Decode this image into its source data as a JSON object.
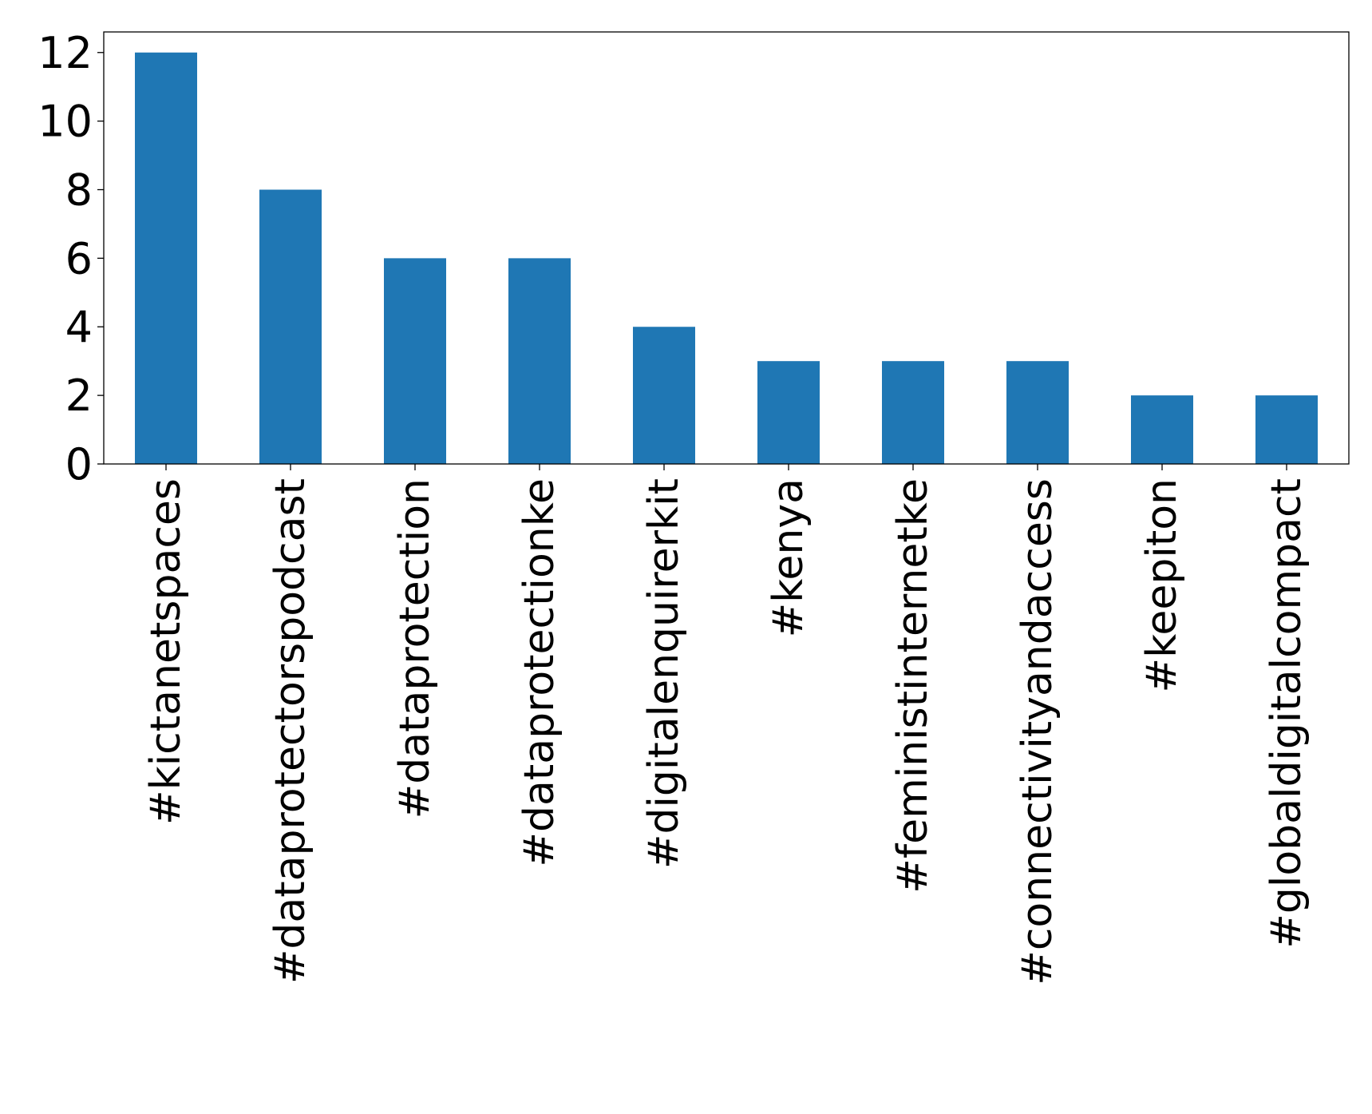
{
  "chart_data": {
    "type": "bar",
    "title": "",
    "xlabel": "",
    "ylabel": "",
    "categories": [
      "#kictanetspaces",
      "#dataprotectorspodcast",
      "#dataprotection",
      "#dataprotectionke",
      "#digitalenquirerkit",
      "#kenya",
      "#feministinternetke",
      "#connectivityandaccess",
      "#keepiton",
      "#globaldigitalcompact"
    ],
    "values": [
      12,
      8,
      6,
      6,
      4,
      3,
      3,
      3,
      2,
      2
    ],
    "ylim": [
      0,
      12.6
    ],
    "yticks": [
      0,
      2,
      4,
      6,
      8,
      10,
      12
    ],
    "bar_color": "#1f77b4",
    "grid": false,
    "legend": "none"
  }
}
